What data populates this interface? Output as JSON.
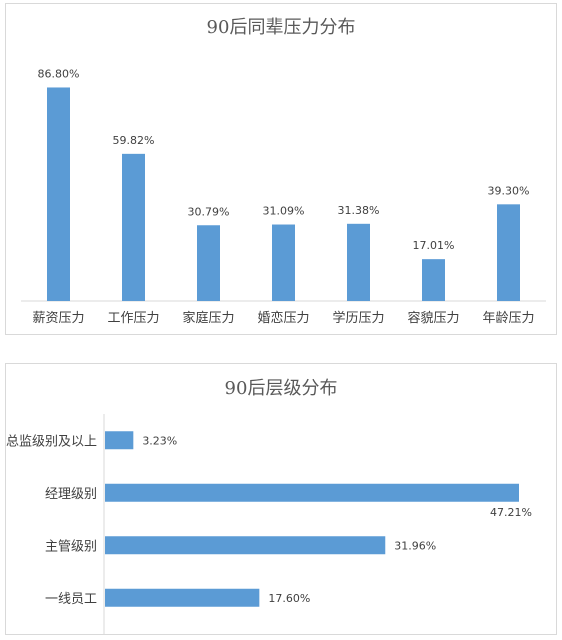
{
  "colors": {
    "bar": "#5b9bd5",
    "axis": "#d9d9d9",
    "text": "#404040",
    "title": "#595959"
  },
  "chart_data": [
    {
      "type": "bar",
      "title": "90后同辈压力分布",
      "categories": [
        "薪资压力",
        "工作压力",
        "家庭压力",
        "婚恋压力",
        "学历压力",
        "容貌压力",
        "年龄压力"
      ],
      "values": [
        86.8,
        59.82,
        30.79,
        31.09,
        31.38,
        17.01,
        39.3
      ],
      "data_labels": [
        "86.80%",
        "59.82%",
        "30.79%",
        "31.09%",
        "31.38%",
        "17.01%",
        "39.30%"
      ],
      "ylim": [
        0,
        100
      ],
      "grid": false
    },
    {
      "type": "bar",
      "orientation": "horizontal",
      "title": "90后层级分布",
      "categories": [
        "总监级别及以上",
        "经理级别",
        "主管级别",
        "一线员工"
      ],
      "values": [
        3.23,
        47.21,
        31.96,
        17.6
      ],
      "data_labels": [
        "3.23%",
        "47.21%",
        "31.96%",
        "17.60%"
      ],
      "xlim": [
        0,
        50
      ],
      "grid": false
    }
  ]
}
